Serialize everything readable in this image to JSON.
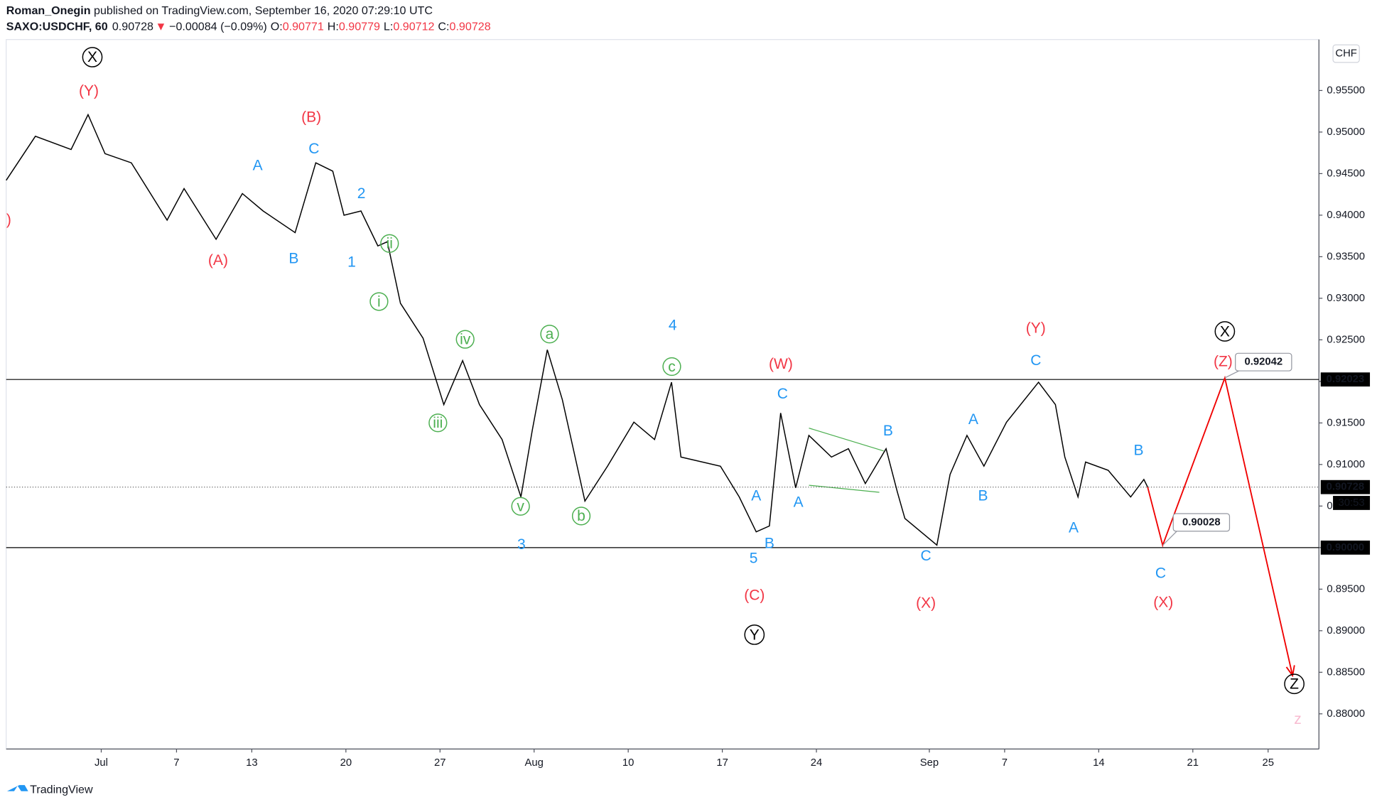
{
  "header": {
    "author": "Roman_Onegin",
    "published": "published on TradingView.com, September 16, 2020 07:29:10 UTC"
  },
  "legend": {
    "symbol": "SAXO:USDCHF, 60",
    "last": "0.90728",
    "arrow": "▼",
    "change": "−0.00084 (−0.09%)",
    "ohlc": [
      {
        "label": "O:",
        "value": "0.90771"
      },
      {
        "label": "H:",
        "value": "0.90779"
      },
      {
        "label": "L:",
        "value": "0.90712"
      },
      {
        "label": "C:",
        "value": "0.90728"
      }
    ]
  },
  "currency": "CHF",
  "countdown": "30:53",
  "footer": "TradingView",
  "chart_data": {
    "type": "line",
    "xlim": [
      -5.05,
      64.7
    ],
    "ylim": [
      0.87577,
      0.96113
    ],
    "xticks": [
      {
        "value": 0,
        "label": "Jul"
      },
      {
        "value": 4,
        "label": "7"
      },
      {
        "value": 8,
        "label": "13"
      },
      {
        "value": 13,
        "label": "20"
      },
      {
        "value": 18,
        "label": "27"
      },
      {
        "value": 23,
        "label": "Aug"
      },
      {
        "value": 28,
        "label": "10"
      },
      {
        "value": 33,
        "label": "17"
      },
      {
        "value": 38,
        "label": "24"
      },
      {
        "value": 44,
        "label": "Sep"
      },
      {
        "value": 48,
        "label": "7"
      },
      {
        "value": 53,
        "label": "14"
      },
      {
        "value": 58,
        "label": "21"
      },
      {
        "value": 62,
        "label": "25"
      }
    ],
    "yticks": [
      {
        "value": 0.88,
        "label": "0.88000"
      },
      {
        "value": 0.885,
        "label": "0.88500"
      },
      {
        "value": 0.89,
        "label": "0.89000"
      },
      {
        "value": 0.895,
        "label": "0.89500"
      },
      {
        "value": 0.9,
        "label": "0.90000"
      },
      {
        "value": 0.905,
        "label": "0.90500"
      },
      {
        "value": 0.91,
        "label": "0.91000"
      },
      {
        "value": 0.915,
        "label": "0.91500"
      },
      {
        "value": 0.92,
        "label": "0.92000"
      },
      {
        "value": 0.925,
        "label": "0.92500"
      },
      {
        "value": 0.93,
        "label": "0.93000"
      },
      {
        "value": 0.935,
        "label": "0.93500"
      },
      {
        "value": 0.94,
        "label": "0.94000"
      },
      {
        "value": 0.945,
        "label": "0.94500"
      },
      {
        "value": 0.95,
        "label": "0.95000"
      },
      {
        "value": 0.955,
        "label": "0.95500"
      }
    ],
    "series": [
      {
        "color": "#000000",
        "x": [
          -5.05,
          -3.5,
          -1.6,
          -0.7,
          0.2,
          1.6,
          3.5,
          4.4,
          6.1,
          7.5,
          8.6,
          10.3,
          11.4,
          12.3,
          12.9,
          13.8,
          14.7,
          15.2,
          15.9,
          17.1,
          18.2,
          19.2,
          20.1,
          21.3,
          22.3,
          22.9,
          23.7,
          24.5,
          25.7,
          26.9,
          28.3,
          29.4,
          30.3,
          30.8,
          32.9,
          33.9,
          34.8,
          35.5,
          36.1,
          36.9,
          37.6,
          38.8,
          39.7,
          40.6,
          41.7,
          42.3,
          42.7,
          44.4,
          45.1,
          46.0,
          46.9,
          48.1,
          49.8,
          50.7,
          51.2,
          51.9,
          52.3,
          53.5,
          54.7,
          55.4,
          55.6
        ],
        "values": [
          0.9442,
          0.9495,
          0.9479,
          0.9521,
          0.9474,
          0.9463,
          0.9394,
          0.9432,
          0.9371,
          0.9426,
          0.9405,
          0.9379,
          0.9463,
          0.9453,
          0.94,
          0.9405,
          0.9363,
          0.9368,
          0.9294,
          0.9252,
          0.9172,
          0.9225,
          0.9172,
          0.913,
          0.9061,
          0.9141,
          0.9238,
          0.9178,
          0.9056,
          0.9098,
          0.9151,
          0.913,
          0.9199,
          0.9109,
          0.9098,
          0.9061,
          0.9019,
          0.9026,
          0.9162,
          0.9072,
          0.9135,
          0.9109,
          0.9119,
          0.9077,
          0.9119,
          0.9067,
          0.9035,
          0.9003,
          0.9088,
          0.9135,
          0.9098,
          0.9151,
          0.9199,
          0.9172,
          0.9109,
          0.9061,
          0.9103,
          0.9093,
          0.9061,
          0.9082,
          0.90728
        ]
      },
      {
        "color": "#f00000",
        "x": [
          55.6,
          56.4,
          59.7,
          63.3
        ],
        "values": [
          0.90728,
          0.90028,
          0.92042,
          0.8846
        ]
      }
    ],
    "levels": [
      {
        "value": 0.92023,
        "style": "solid"
      },
      {
        "value": 0.9,
        "label": "0.90000",
        "style": "solid"
      },
      {
        "value": 0.90728,
        "style": "dotted"
      }
    ],
    "annotations": [
      "X",
      "(Y)",
      "(B)",
      ")",
      "C",
      "A",
      "2",
      "(A)",
      "B",
      "1",
      "ii",
      "i",
      "iv",
      "iii",
      "a",
      "v",
      "b",
      "c",
      "4",
      "3",
      "(W)",
      "C",
      "A",
      "A",
      "B",
      "5",
      "(C)",
      "Y",
      "B",
      "C",
      "(X)",
      "A",
      "B",
      "(Y)",
      "C",
      "A",
      "B",
      "C",
      "(X)",
      "X",
      "(Z)",
      "Z",
      "z"
    ]
  }
}
